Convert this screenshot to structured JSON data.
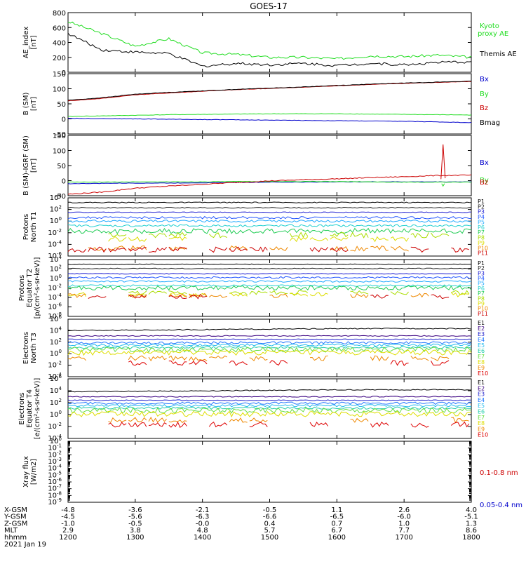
{
  "title": "GOES-17",
  "colors": {
    "black": "#000000",
    "green": "#22dd22",
    "blue": "#0000cc",
    "red": "#cc0000",
    "P": [
      "#000000",
      "#222222",
      "#1a1ad0",
      "#2255ff",
      "#22aaff",
      "#22d0d0",
      "#22cc55",
      "#aadd00",
      "#dddd00",
      "#ee8800",
      "#cc0000",
      "#aa0000"
    ],
    "E": [
      "#000000",
      "#3a0080",
      "#2222cc",
      "#2277ff",
      "#22bbee",
      "#22ccaa",
      "#66dd44",
      "#dddd00",
      "#ee8800",
      "#dd0000",
      "#bb0000"
    ]
  },
  "chart_data": [
    {
      "id": "ae",
      "type": "line",
      "ylabel": "AE_index\n[nT]",
      "ylim": [
        0,
        800
      ],
      "yticks": [
        "800",
        "600",
        "400",
        "200",
        "0"
      ],
      "tick_values": [
        800,
        600,
        400,
        200,
        0
      ],
      "x": [
        "1200",
        "1230",
        "1300",
        "1330",
        "1400",
        "1430",
        "1500",
        "1530",
        "1600",
        "1630",
        "1700",
        "1730",
        "1800"
      ],
      "series": [
        {
          "name": "Kyoto proxy AE",
          "color": "#22dd22",
          "values": [
            680,
            520,
            350,
            450,
            260,
            240,
            200,
            200,
            180,
            220,
            210,
            230,
            200
          ]
        },
        {
          "name": "Themis AE",
          "color": "#000000",
          "values": [
            520,
            300,
            270,
            250,
            80,
            120,
            100,
            120,
            90,
            120,
            100,
            130,
            140
          ]
        }
      ]
    },
    {
      "id": "bsm",
      "type": "line",
      "ylabel": "B (SM)\n[nT]",
      "ylim": [
        -50,
        150
      ],
      "yticks": [
        "150",
        "100",
        "50",
        "0",
        "-50"
      ],
      "tick_values": [
        150,
        100,
        50,
        0,
        -50
      ],
      "x": [
        "1200",
        "1230",
        "1300",
        "1330",
        "1400",
        "1430",
        "1500",
        "1530",
        "1600",
        "1630",
        "1700",
        "1730",
        "1800"
      ],
      "series": [
        {
          "name": "Bx",
          "color": "#0000cc",
          "values": [
            2,
            1,
            0,
            -1,
            -2,
            -3,
            -4,
            -5,
            -6,
            -7,
            -8,
            -10,
            -12
          ]
        },
        {
          "name": "By",
          "color": "#22dd22",
          "values": [
            8,
            10,
            12,
            14,
            15,
            16,
            17,
            17,
            17,
            16,
            15,
            14,
            13
          ]
        },
        {
          "name": "Bz",
          "color": "#cc0000",
          "values": [
            60,
            68,
            80,
            86,
            92,
            97,
            101,
            105,
            110,
            114,
            118,
            121,
            124
          ]
        },
        {
          "name": "Bmag",
          "color": "#000000",
          "values": [
            62,
            70,
            82,
            88,
            93,
            98,
            102,
            106,
            111,
            115,
            119,
            122,
            125
          ]
        }
      ]
    },
    {
      "id": "bigrf",
      "type": "line",
      "ylabel": "B (SM)-IGRF (SM)\n[nT]",
      "ylim": [
        -50,
        150
      ],
      "yticks": [
        "150",
        "100",
        "50",
        "0",
        "-50"
      ],
      "tick_values": [
        150,
        100,
        50,
        0,
        -50
      ],
      "x": [
        "1200",
        "1230",
        "1300",
        "1330",
        "1400",
        "1430",
        "1500",
        "1530",
        "1600",
        "1630",
        "1700",
        "1730",
        "1800"
      ],
      "series": [
        {
          "name": "Bx",
          "color": "#0000cc",
          "values": [
            -10,
            -9,
            -8,
            -8,
            -7,
            -6,
            -5,
            -5,
            -4,
            -4,
            -4,
            -4,
            -4
          ]
        },
        {
          "name": "By",
          "color": "#22dd22",
          "values": [
            -5,
            -5,
            -4,
            -4,
            -4,
            -3,
            -3,
            -3,
            -3,
            -4,
            -5,
            -5,
            -5
          ]
        },
        {
          "name": "Bz",
          "color": "#cc0000",
          "values": [
            -45,
            -38,
            -25,
            -18,
            -12,
            -6,
            -1,
            3,
            6,
            10,
            13,
            17,
            18
          ]
        }
      ]
    },
    {
      "id": "pt1",
      "type": "line",
      "log": true,
      "ylabel": "Protons\nNorth T1",
      "ylim_exp": [
        -6,
        4
      ],
      "yticks": [
        "10^4",
        "10^2",
        "10^0",
        "10^-2",
        "10^-4",
        "10^-6"
      ],
      "tick_values": [
        4,
        2,
        0,
        -2,
        -4,
        -6
      ],
      "legend": [
        "P1",
        "P2",
        "P3",
        "P4",
        "P5",
        "P6",
        "P7",
        "P8",
        "P9",
        "P10",
        "P11"
      ],
      "levels": [
        3.2,
        2.3,
        1.5,
        0.6,
        0.0,
        -0.8,
        -1.7,
        -2.4,
        -3.1,
        -4.7,
        -4.9
      ]
    },
    {
      "id": "pt2",
      "type": "line",
      "log": true,
      "ylabel": "Protons\nEquator T2\n[p/(cm²-s-sr-keV)]",
      "ylim_exp": [
        -8,
        4
      ],
      "yticks": [
        "10^4",
        "10^2",
        "10^0",
        "10^-2",
        "10^-4",
        "10^-6",
        "10^-8"
      ],
      "tick_values": [
        4,
        2,
        0,
        -2,
        -4,
        -6,
        -8
      ],
      "legend": [
        "P1",
        "P2",
        "P3",
        "P4",
        "P5",
        "P6",
        "P7",
        "P8",
        "P9",
        "P10",
        "P11"
      ],
      "levels": [
        3.0,
        2.1,
        1.0,
        0.2,
        -0.6,
        -1.5,
        -2.0,
        -3.0,
        -3.4,
        -3.6,
        -3.8
      ]
    },
    {
      "id": "et3",
      "type": "line",
      "log": true,
      "ylabel": "Electrons\nNorth T3",
      "ylim_exp": [
        -4,
        6
      ],
      "yticks": [
        "10^6",
        "10^4",
        "10^2",
        "10^0",
        "10^-2",
        "10^-4"
      ],
      "tick_values": [
        6,
        4,
        2,
        0,
        -2,
        -4
      ],
      "legend": [
        "E1",
        "E2",
        "E3",
        "E4",
        "E5",
        "E6",
        "E7",
        "E8",
        "E9",
        "E10"
      ],
      "levels": [
        4.2,
        3.1,
        2.5,
        1.9,
        1.5,
        1.1,
        0.7,
        0.2,
        -0.8,
        -1.6
      ]
    },
    {
      "id": "et4",
      "type": "line",
      "log": true,
      "ylabel": "Electrons\nEquator T4\n[e/(cm²-s-sr-keV)]",
      "ylim_exp": [
        -4,
        6
      ],
      "yticks": [
        "10^6",
        "10^4",
        "10^2",
        "10^0",
        "10^-2",
        "10^-4"
      ],
      "tick_values": [
        6,
        4,
        2,
        0,
        -2,
        -4
      ],
      "legend": [
        "E1",
        "E2",
        "E3",
        "E4",
        "E5",
        "E6",
        "E7",
        "E8",
        "E9",
        "E10"
      ],
      "levels": [
        4.0,
        3.0,
        2.4,
        1.9,
        1.5,
        1.1,
        0.7,
        0.1,
        -0.9,
        -1.7
      ]
    },
    {
      "id": "xray",
      "type": "line",
      "log": true,
      "ylabel": "Xray flux\n[W/m2]",
      "ylim_exp": [
        -9,
        0
      ],
      "yticks": [
        "10^0",
        "10^-1",
        "10^-2",
        "10^-3",
        "10^-4",
        "10^-5",
        "10^-6",
        "10^-7",
        "10^-8",
        "10^-9"
      ],
      "tick_values": [
        0,
        -1,
        -2,
        -3,
        -4,
        -5,
        -6,
        -7,
        -8,
        -9
      ],
      "series": [
        {
          "name": "0.1-0.8 nm",
          "color": "#cc0000"
        },
        {
          "name": "0.05-0.4 nm",
          "color": "#0000cc"
        }
      ]
    }
  ],
  "xaxis": {
    "rows": [
      {
        "label": "X-GSM",
        "values": [
          "-4.8",
          "-3.6",
          "-2.1",
          "-0.5",
          "1.1",
          "2.6",
          "4.0"
        ]
      },
      {
        "label": "Y-GSM",
        "values": [
          "-4.5",
          "-5.6",
          "-6.3",
          "-6.6",
          "-6.5",
          "-6.0",
          "-5.1"
        ]
      },
      {
        "label": "Z-GSM",
        "values": [
          "-1.0",
          "-0.5",
          "-0.0",
          "0.4",
          "0.7",
          "1.0",
          "1.3"
        ]
      },
      {
        "label": "MLT",
        "values": [
          "2.9",
          "3.8",
          "4.8",
          "5.7",
          "6.7",
          "7.7",
          "8.6"
        ]
      },
      {
        "label": "hhmm",
        "values": [
          "1200",
          "1300",
          "1400",
          "1500",
          "1600",
          "1700",
          "1800"
        ]
      }
    ],
    "date": "2021 Jan 19"
  }
}
